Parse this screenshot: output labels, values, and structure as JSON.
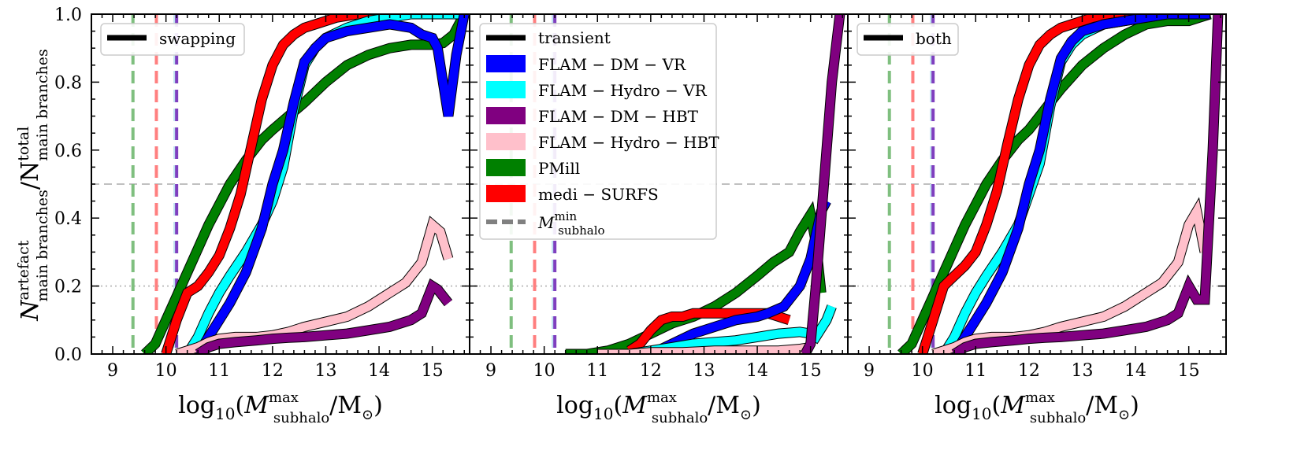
{
  "figure": {
    "ylabel_main_top": "N",
    "ylabel_sup": "artefact",
    "ylabel_sub": "main branches",
    "ylabel_slash": "/N",
    "ylabel_sup2": "total",
    "ylabel_sub2": "main branches"
  },
  "chart_data": [
    {
      "type": "line",
      "panel": 1,
      "legend_title": "swapping",
      "legend_position": "top-left",
      "xlabel_main": "log",
      "xlabel_sub": "10",
      "xlabel_rest": "(M",
      "xlabel_sup": "max",
      "xlabel_sub2": "subhalo",
      "xlabel_end": "/M",
      "xlabel_sun": "⊙",
      "xlabel_close": ")",
      "xlim": [
        8.6,
        15.7
      ],
      "ylim": [
        0,
        1
      ],
      "xticks": [
        "9",
        "10",
        "11",
        "12",
        "13",
        "14",
        "15"
      ],
      "yticks": [
        "0.0",
        "0.2",
        "0.4",
        "0.6",
        "0.8",
        "1.0"
      ],
      "hlines": [
        {
          "y": 0.5,
          "style": "dashed"
        },
        {
          "y": 0.2,
          "style": "dotted"
        }
      ],
      "vlines": [
        {
          "x": 9.38,
          "color": "#7fbf7f"
        },
        {
          "x": 9.82,
          "color": "#ff7f7f"
        },
        {
          "x": 10.17,
          "color": "#bfe0f0"
        },
        {
          "x": 10.2,
          "color": "#7f3fbf"
        }
      ],
      "series": [
        {
          "name": "PMill",
          "color": "#008000",
          "x": [
            9.6,
            9.8,
            10.0,
            10.2,
            10.4,
            10.6,
            10.8,
            11.0,
            11.2,
            11.5,
            11.8,
            12.0,
            12.3,
            12.6,
            13.0,
            13.4,
            13.8,
            14.2,
            14.6,
            15.0,
            15.2,
            15.4,
            15.6
          ],
          "y": [
            0.0,
            0.03,
            0.1,
            0.17,
            0.24,
            0.31,
            0.38,
            0.44,
            0.5,
            0.57,
            0.63,
            0.66,
            0.7,
            0.74,
            0.8,
            0.85,
            0.88,
            0.9,
            0.91,
            0.91,
            0.915,
            0.94,
            1.0
          ]
        },
        {
          "name": "medi−SURFS",
          "color": "#ff0000",
          "x": [
            10.0,
            10.2,
            10.4,
            10.6,
            10.8,
            11.0,
            11.2,
            11.4,
            11.6,
            11.8,
            12.0,
            12.2,
            12.4,
            12.6,
            12.8,
            13.2,
            13.6,
            14.0,
            14.4,
            14.8,
            15.2
          ],
          "y": [
            0.0,
            0.1,
            0.18,
            0.2,
            0.24,
            0.29,
            0.37,
            0.47,
            0.61,
            0.75,
            0.85,
            0.91,
            0.94,
            0.96,
            0.97,
            0.99,
            1.0,
            1.0,
            1.0,
            1.0,
            1.0
          ]
        },
        {
          "name": "FLAM−Hydro−VR",
          "color": "#00ffff",
          "x": [
            10.4,
            10.6,
            10.8,
            11.0,
            11.2,
            11.5,
            11.8,
            12.0,
            12.2,
            12.4,
            12.6,
            12.8,
            13.0,
            13.4,
            13.8,
            14.2,
            14.6,
            15.0,
            15.4,
            15.6
          ],
          "y": [
            0.0,
            0.05,
            0.12,
            0.18,
            0.23,
            0.3,
            0.38,
            0.45,
            0.55,
            0.72,
            0.85,
            0.9,
            0.93,
            0.96,
            0.98,
            0.99,
            1.0,
            1.0,
            1.0,
            1.0
          ]
        },
        {
          "name": "FLAM−DM−VR",
          "color": "#0000ff",
          "x": [
            10.6,
            10.8,
            11.0,
            11.2,
            11.5,
            11.8,
            12.0,
            12.2,
            12.4,
            12.6,
            12.8,
            13.0,
            13.4,
            13.8,
            14.2,
            14.6,
            14.8,
            15.0,
            15.1,
            15.3,
            15.45,
            15.6
          ],
          "y": [
            0.0,
            0.05,
            0.1,
            0.15,
            0.24,
            0.37,
            0.5,
            0.6,
            0.74,
            0.86,
            0.9,
            0.93,
            0.95,
            0.96,
            0.97,
            0.96,
            0.94,
            0.93,
            0.9,
            0.7,
            0.88,
            1.0
          ]
        },
        {
          "name": "FLAM−Hydro−HBT",
          "color": "#ffc0cb",
          "x": [
            10.2,
            10.4,
            10.6,
            10.8,
            11.0,
            11.3,
            11.7,
            12.0,
            12.3,
            12.6,
            13.0,
            13.4,
            13.8,
            14.2,
            14.5,
            14.8,
            15.0,
            15.15,
            15.3
          ],
          "y": [
            0.0,
            0.01,
            0.02,
            0.035,
            0.045,
            0.05,
            0.05,
            0.055,
            0.065,
            0.08,
            0.095,
            0.11,
            0.14,
            0.18,
            0.21,
            0.27,
            0.38,
            0.36,
            0.28
          ]
        },
        {
          "name": "FLAM−DM−HBT",
          "color": "#800080",
          "x": [
            10.6,
            10.8,
            11.0,
            11.3,
            11.7,
            12.0,
            12.3,
            12.6,
            13.0,
            13.4,
            13.8,
            14.2,
            14.6,
            14.8,
            15.0,
            15.1,
            15.3
          ],
          "y": [
            0.0,
            0.02,
            0.03,
            0.035,
            0.04,
            0.045,
            0.048,
            0.05,
            0.055,
            0.06,
            0.07,
            0.08,
            0.1,
            0.12,
            0.2,
            0.19,
            0.15
          ]
        }
      ]
    },
    {
      "type": "line",
      "panel": 2,
      "legend_title": "transient",
      "legend_position": "top-left",
      "legend_entries": [
        "FLAM − DM − VR",
        "FLAM − Hydro − VR",
        "FLAM − DM − HBT",
        "FLAM − Hydro − HBT",
        "PMill",
        "medi − SURFS"
      ],
      "legend_mmin_main": "M",
      "legend_mmin_sup": "min",
      "legend_mmin_sub": "subhalo",
      "xlabel_main": "log",
      "xlabel_sub": "10",
      "xlabel_rest": "(M",
      "xlabel_sup": "max",
      "xlabel_sub2": "subhalo",
      "xlabel_end": "/M",
      "xlabel_sun": "⊙",
      "xlabel_close": ")",
      "xlim": [
        8.6,
        15.7
      ],
      "ylim": [
        0,
        1
      ],
      "xticks": [
        "9",
        "10",
        "11",
        "12",
        "13",
        "14",
        "15"
      ],
      "hlines": [
        {
          "y": 0.5,
          "style": "dashed"
        },
        {
          "y": 0.2,
          "style": "dotted"
        }
      ],
      "vlines": [
        {
          "x": 9.38,
          "color": "#7fbf7f"
        },
        {
          "x": 9.82,
          "color": "#ff7f7f"
        },
        {
          "x": 10.17,
          "color": "#bfe0f0"
        },
        {
          "x": 10.2,
          "color": "#7f3fbf"
        }
      ],
      "series": [
        {
          "name": "PMill",
          "color": "#008000",
          "x": [
            10.4,
            10.8,
            11.2,
            11.6,
            12.0,
            12.4,
            12.8,
            13.2,
            13.6,
            14.0,
            14.3,
            14.6,
            14.8,
            15.0,
            15.1,
            15.2
          ],
          "y": [
            0.0,
            0.0,
            0.01,
            0.03,
            0.06,
            0.09,
            0.11,
            0.14,
            0.18,
            0.23,
            0.27,
            0.3,
            0.36,
            0.41,
            0.33,
            0.18
          ]
        },
        {
          "name": "medi−SURFS",
          "color": "#ff0000",
          "x": [
            11.6,
            11.8,
            12.0,
            12.2,
            12.4,
            12.6,
            12.8,
            13.0,
            13.4,
            13.8,
            14.2,
            14.6
          ],
          "y": [
            0.01,
            0.03,
            0.07,
            0.1,
            0.11,
            0.11,
            0.12,
            0.12,
            0.12,
            0.12,
            0.12,
            0.1
          ]
        },
        {
          "name": "FLAM−DM−VR",
          "color": "#0000ff",
          "x": [
            12.0,
            12.4,
            12.8,
            13.2,
            13.6,
            14.0,
            14.2,
            14.5,
            14.8,
            15.0,
            15.1,
            15.2,
            15.3
          ],
          "y": [
            0.0,
            0.03,
            0.06,
            0.08,
            0.1,
            0.11,
            0.12,
            0.14,
            0.2,
            0.28,
            0.35,
            0.42,
            0.45
          ]
        },
        {
          "name": "FLAM−Hydro−VR",
          "color": "#00ffff",
          "x": [
            11.6,
            12.0,
            12.4,
            12.8,
            13.2,
            13.6,
            14.0,
            14.4,
            14.8,
            15.0,
            15.1,
            15.3,
            15.4
          ],
          "y": [
            0.0,
            0.01,
            0.02,
            0.03,
            0.035,
            0.04,
            0.05,
            0.06,
            0.065,
            0.06,
            0.05,
            0.1,
            0.14
          ]
        },
        {
          "name": "FLAM−Hydro−HBT",
          "color": "#ffc0cb",
          "x": [
            11.0,
            11.6,
            12.0,
            12.6,
            13.2,
            13.8,
            14.4,
            14.8,
            15.0
          ],
          "y": [
            0.0,
            0.0,
            0.005,
            0.005,
            0.01,
            0.01,
            0.01,
            0.015,
            0.02
          ]
        },
        {
          "name": "FLAM−DM−HBT",
          "color": "#800080",
          "x": [
            14.9,
            15.0,
            15.1,
            15.2,
            15.3,
            15.4,
            15.55
          ],
          "y": [
            0.0,
            0.03,
            0.2,
            0.4,
            0.6,
            0.8,
            1.0
          ]
        }
      ]
    },
    {
      "type": "line",
      "panel": 3,
      "legend_title": "both",
      "legend_position": "top-left",
      "xlabel_main": "log",
      "xlabel_sub": "10",
      "xlabel_rest": "(M",
      "xlabel_sup": "max",
      "xlabel_sub2": "subhalo",
      "xlabel_end": "/M",
      "xlabel_sun": "⊙",
      "xlabel_close": ")",
      "xlim": [
        8.6,
        15.7
      ],
      "ylim": [
        0,
        1
      ],
      "xticks": [
        "9",
        "10",
        "11",
        "12",
        "13",
        "14",
        "15"
      ],
      "hlines": [
        {
          "y": 0.5,
          "style": "dashed"
        },
        {
          "y": 0.2,
          "style": "dotted"
        }
      ],
      "vlines": [
        {
          "x": 9.38,
          "color": "#7fbf7f"
        },
        {
          "x": 9.82,
          "color": "#ff7f7f"
        },
        {
          "x": 10.17,
          "color": "#bfe0f0"
        },
        {
          "x": 10.2,
          "color": "#7f3fbf"
        }
      ],
      "series": [
        {
          "name": "PMill",
          "color": "#008000",
          "x": [
            9.6,
            9.8,
            10.0,
            10.2,
            10.4,
            10.6,
            10.8,
            11.0,
            11.2,
            11.5,
            11.8,
            12.0,
            12.3,
            12.6,
            13.0,
            13.4,
            13.8,
            14.2,
            14.6,
            15.0,
            15.2,
            15.4
          ],
          "y": [
            0.0,
            0.03,
            0.1,
            0.17,
            0.24,
            0.31,
            0.38,
            0.44,
            0.5,
            0.57,
            0.63,
            0.66,
            0.72,
            0.78,
            0.85,
            0.9,
            0.94,
            0.97,
            0.98,
            0.98,
            0.99,
            1.0
          ]
        },
        {
          "name": "medi−SURFS",
          "color": "#ff0000",
          "x": [
            10.0,
            10.2,
            10.4,
            10.6,
            10.8,
            11.0,
            11.2,
            11.4,
            11.6,
            11.8,
            12.0,
            12.2,
            12.4,
            12.6,
            12.8,
            13.2,
            13.6,
            14.0,
            14.4,
            14.8,
            15.2
          ],
          "y": [
            0.0,
            0.1,
            0.2,
            0.23,
            0.26,
            0.3,
            0.38,
            0.48,
            0.62,
            0.75,
            0.85,
            0.91,
            0.94,
            0.96,
            0.97,
            0.99,
            1.0,
            1.0,
            1.0,
            1.0,
            1.0
          ]
        },
        {
          "name": "FLAM−Hydro−VR",
          "color": "#00ffff",
          "x": [
            10.4,
            10.6,
            10.8,
            11.0,
            11.2,
            11.5,
            11.8,
            12.0,
            12.2,
            12.4,
            12.6,
            12.8,
            13.0,
            13.4,
            13.8,
            14.2,
            14.6,
            15.0,
            15.4
          ],
          "y": [
            0.0,
            0.05,
            0.12,
            0.18,
            0.23,
            0.3,
            0.38,
            0.47,
            0.56,
            0.73,
            0.86,
            0.91,
            0.94,
            0.97,
            0.98,
            0.99,
            1.0,
            1.0,
            1.0
          ]
        },
        {
          "name": "FLAM−DM−VR",
          "color": "#0000ff",
          "x": [
            10.6,
            10.8,
            11.0,
            11.2,
            11.5,
            11.8,
            12.0,
            12.2,
            12.4,
            12.6,
            12.8,
            13.0,
            13.4,
            13.8,
            14.2,
            14.6,
            15.0,
            15.4
          ],
          "y": [
            0.0,
            0.05,
            0.1,
            0.15,
            0.24,
            0.37,
            0.5,
            0.6,
            0.75,
            0.87,
            0.92,
            0.95,
            0.97,
            0.98,
            0.99,
            1.0,
            1.0,
            1.0
          ]
        },
        {
          "name": "FLAM−Hydro−HBT",
          "color": "#ffc0cb",
          "x": [
            10.2,
            10.4,
            10.6,
            10.8,
            11.0,
            11.3,
            11.7,
            12.0,
            12.3,
            12.6,
            13.0,
            13.4,
            13.8,
            14.2,
            14.5,
            14.8,
            15.0,
            15.15,
            15.3
          ],
          "y": [
            0.0,
            0.01,
            0.02,
            0.035,
            0.045,
            0.05,
            0.05,
            0.055,
            0.065,
            0.08,
            0.095,
            0.11,
            0.14,
            0.18,
            0.21,
            0.27,
            0.38,
            0.42,
            0.3
          ]
        },
        {
          "name": "FLAM−DM−HBT",
          "color": "#800080",
          "x": [
            10.6,
            10.8,
            11.0,
            11.3,
            11.7,
            12.0,
            12.3,
            12.6,
            13.0,
            13.4,
            13.8,
            14.2,
            14.6,
            14.8,
            15.0,
            15.15,
            15.3,
            15.45,
            15.55
          ],
          "y": [
            0.0,
            0.02,
            0.03,
            0.035,
            0.04,
            0.045,
            0.048,
            0.05,
            0.055,
            0.06,
            0.07,
            0.08,
            0.1,
            0.12,
            0.2,
            0.16,
            0.16,
            0.6,
            1.0
          ]
        }
      ]
    }
  ]
}
